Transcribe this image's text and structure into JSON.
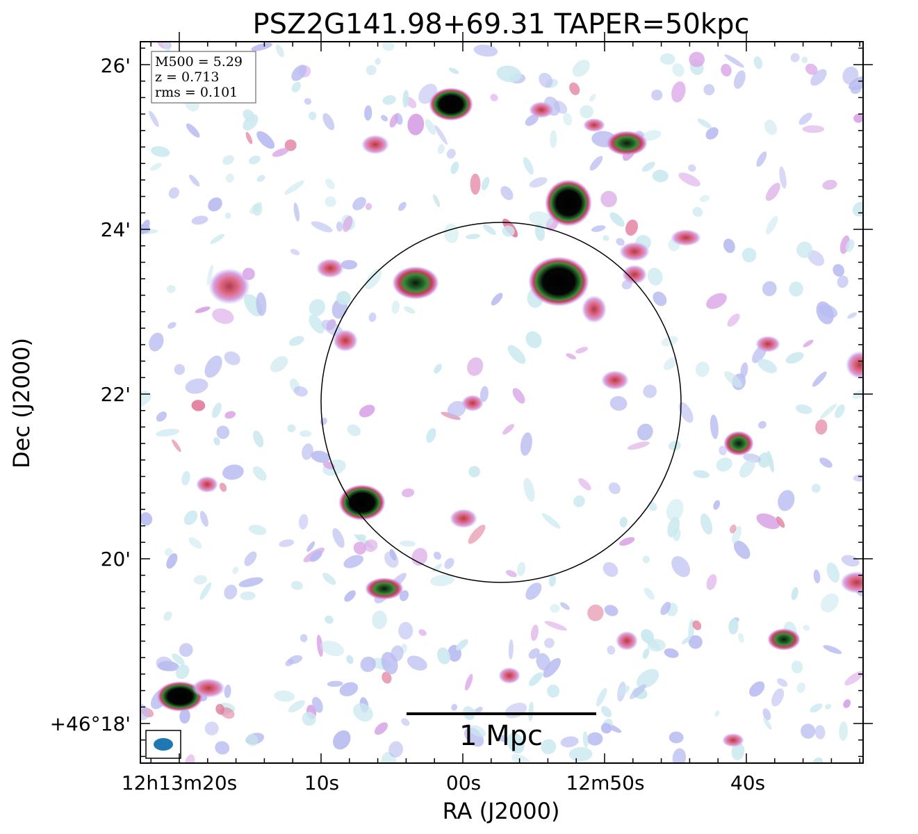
{
  "chart_data": {
    "type": "heatmap",
    "title": "PSZ2G141.98+69.31 TAPER=50kpc",
    "xlabel": "RA (J2000)",
    "ylabel": "Dec (J2000)",
    "x_tick_labels": [
      "12h13m20s",
      "10s",
      "00s",
      "12m50s",
      "40s"
    ],
    "y_tick_labels": [
      "26'",
      "24'",
      "22'",
      "20'",
      "+46°18'"
    ],
    "info": {
      "m500": "M500 = 5.29",
      "z": "z = 0.713",
      "rms": "rms = 0.101"
    },
    "scale_bar_label": "1 Mpc",
    "colormap": [
      "#ffffff",
      "#c8e9ee",
      "#b4b8f0",
      "#d89ad8",
      "#e0607a",
      "#c04050",
      "#3a8a3a",
      "#0a2a0a",
      "#000000"
    ],
    "beam_color": "#1f77b4",
    "sources": [
      {
        "ra": "12h13m01.2s",
        "dec": "+46°25.5'",
        "peak": 1.0
      },
      {
        "ra": "12h12m53.5s",
        "dec": "+46°24.3'",
        "peak": 1.0
      },
      {
        "ra": "12h12m54.4s",
        "dec": "+46°23.3'",
        "peak": 1.0
      },
      {
        "ra": "12h13m04.8s",
        "dec": "+46°23.3'",
        "peak": 0.8
      },
      {
        "ra": "12h12m48.5s",
        "dec": "+46°25.0'",
        "peak": 0.7
      },
      {
        "ra": "12h13m08.2s",
        "dec": "+46°20.7'",
        "peak": 1.0
      },
      {
        "ra": "12h13m06.8s",
        "dec": "+46°19.6'",
        "peak": 0.7
      },
      {
        "ra": "12h13m20.2s",
        "dec": "+46°18.3'",
        "peak": 1.0
      },
      {
        "ra": "12h12m40.3s",
        "dec": "+46°21.4'",
        "peak": 0.7
      },
      {
        "ra": "12h12m37.2s",
        "dec": "+46°19.0'",
        "peak": 0.6
      }
    ]
  }
}
